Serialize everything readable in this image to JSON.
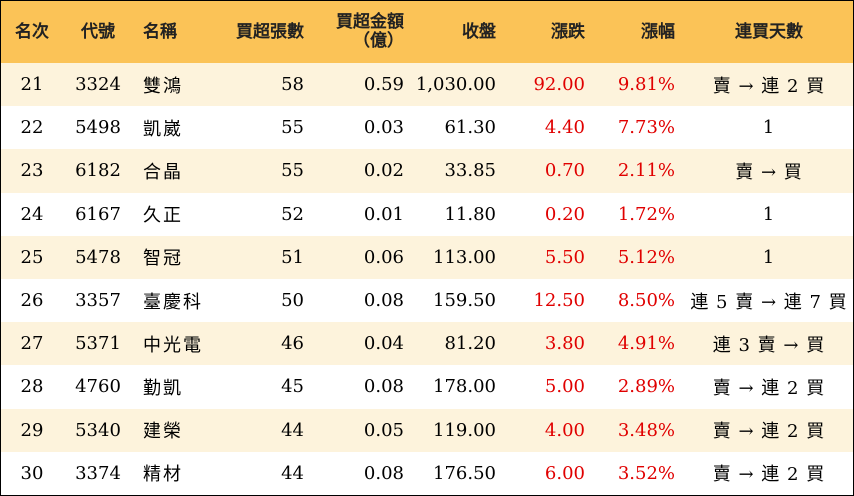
{
  "headers": {
    "rank": "名次",
    "code": "代號",
    "name": "名稱",
    "net_buy_lots": "買超張數",
    "net_buy_amount_line1": "買超金額",
    "net_buy_amount_line2": "（億）",
    "close": "收盤",
    "change": "漲跌",
    "change_pct": "漲幅",
    "buy_days": "連買天數"
  },
  "rows": [
    {
      "rank": "21",
      "code": "3324",
      "name": "雙鴻",
      "lots": "58",
      "amount": "0.59",
      "close": "1,030.00",
      "change": "92.00",
      "pct": "9.81%",
      "days": "賣 → 連 2 買"
    },
    {
      "rank": "22",
      "code": "5498",
      "name": "凱崴",
      "lots": "55",
      "amount": "0.03",
      "close": "61.30",
      "change": "4.40",
      "pct": "7.73%",
      "days": "1"
    },
    {
      "rank": "23",
      "code": "6182",
      "name": "合晶",
      "lots": "55",
      "amount": "0.02",
      "close": "33.85",
      "change": "0.70",
      "pct": "2.11%",
      "days": "賣 → 買"
    },
    {
      "rank": "24",
      "code": "6167",
      "name": "久正",
      "lots": "52",
      "amount": "0.01",
      "close": "11.80",
      "change": "0.20",
      "pct": "1.72%",
      "days": "1"
    },
    {
      "rank": "25",
      "code": "5478",
      "name": "智冠",
      "lots": "51",
      "amount": "0.06",
      "close": "113.00",
      "change": "5.50",
      "pct": "5.12%",
      "days": "1"
    },
    {
      "rank": "26",
      "code": "3357",
      "name": "臺慶科",
      "lots": "50",
      "amount": "0.08",
      "close": "159.50",
      "change": "12.50",
      "pct": "8.50%",
      "days": "連 5 賣 → 連 7 買"
    },
    {
      "rank": "27",
      "code": "5371",
      "name": "中光電",
      "lots": "46",
      "amount": "0.04",
      "close": "81.20",
      "change": "3.80",
      "pct": "4.91%",
      "days": "連 3 賣 → 買"
    },
    {
      "rank": "28",
      "code": "4760",
      "name": "勤凱",
      "lots": "45",
      "amount": "0.08",
      "close": "178.00",
      "change": "5.00",
      "pct": "2.89%",
      "days": "賣 → 連 2 買"
    },
    {
      "rank": "29",
      "code": "5340",
      "name": "建榮",
      "lots": "44",
      "amount": "0.05",
      "close": "119.00",
      "change": "4.00",
      "pct": "3.48%",
      "days": "賣 → 連 2 買"
    },
    {
      "rank": "30",
      "code": "3374",
      "name": "精材",
      "lots": "44",
      "amount": "0.08",
      "close": "176.50",
      "change": "6.00",
      "pct": "3.52%",
      "days": "賣 → 連 2 買"
    }
  ],
  "colors": {
    "header_bg": "#fbc357",
    "odd_row_bg": "#fdf3dc",
    "even_row_bg": "#ffffff",
    "positive_change": "#e00000"
  }
}
